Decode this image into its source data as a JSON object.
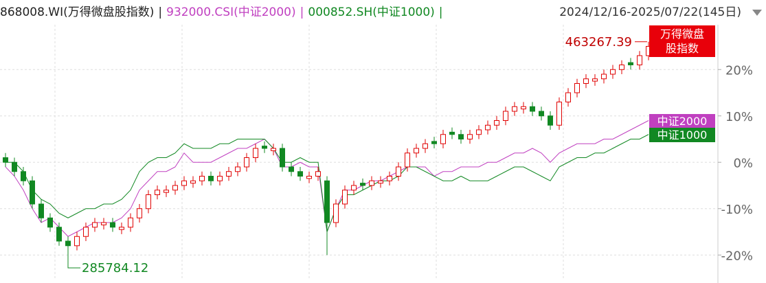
{
  "chart_data": {
    "type": "candlestick",
    "header": [
      {
        "text": "868008.WI(万得微盘股指数)",
        "color": "#222222"
      },
      {
        "text": "|",
        "color": "#222222"
      },
      {
        "text": "932000.CSI(中证2000)",
        "color": "#c040c0"
      },
      {
        "text": "|",
        "color": "#c040c0"
      },
      {
        "text": "000852.SH(中证1000)",
        "color": "#118822"
      },
      {
        "text": "|",
        "color": "#118822"
      }
    ],
    "date_range": "2024/12/16-2025/07/22(145日)",
    "ylim": [
      -25,
      35
    ],
    "yticks": [
      {
        "value": 20,
        "label": "20%"
      },
      {
        "value": 10,
        "label": "10%"
      },
      {
        "value": 0,
        "label": "0%"
      },
      {
        "value": -10,
        "label": "-10%"
      },
      {
        "value": -20,
        "label": "-20%"
      }
    ],
    "grid": true,
    "candles": {
      "name": "万得微盘股指数",
      "up_color": "#e00000",
      "down_color": "#118822",
      "open": [
        1,
        0,
        -2,
        -4,
        -9,
        -12,
        -14,
        -17,
        -18,
        -16,
        -14,
        -13.5,
        -13,
        -14.5,
        -14,
        -12,
        -10,
        -7,
        -6.5,
        -6,
        -5,
        -4.5,
        -4,
        -3,
        -4,
        -3,
        -2,
        -1,
        1,
        3.5,
        2.5,
        3,
        -1,
        -2,
        -3.5,
        -3,
        -4,
        -13,
        -9,
        -6,
        -4.5,
        -5,
        -4.5,
        -4,
        -3,
        -1,
        2,
        3,
        4.5,
        4,
        6.5,
        6,
        5,
        6,
        7,
        8,
        9,
        11,
        11.5,
        12,
        11,
        10,
        8,
        13,
        15,
        17,
        17.5,
        18,
        19,
        20,
        21.5,
        21,
        23
      ],
      "high": [
        2,
        1,
        -1,
        -3,
        -8,
        -11,
        -13,
        -16,
        -15,
        -13,
        -12,
        -12,
        -12,
        -13,
        -11,
        -9,
        -6,
        -5,
        -5,
        -4,
        -3,
        -3,
        -2,
        -2,
        -2,
        -1,
        0,
        2,
        4,
        4.5,
        4,
        4,
        0,
        -1,
        -2,
        -1,
        -3,
        -8,
        -5,
        -4,
        -3.5,
        -3,
        -3,
        -2,
        0,
        3,
        4,
        5,
        5.5,
        7,
        7.5,
        7,
        7,
        8,
        9,
        10,
        12,
        13,
        13,
        13,
        12,
        11,
        14,
        16,
        18,
        19,
        19,
        20,
        21,
        22,
        22.5,
        24,
        26
      ],
      "low": [
        -1,
        -3,
        -5,
        -10,
        -13,
        -15,
        -18,
        -21,
        -19,
        -17,
        -15,
        -14.5,
        -15,
        -15.5,
        -15,
        -13,
        -11,
        -8,
        -7.5,
        -7,
        -6,
        -5.5,
        -5,
        -5,
        -5,
        -4,
        -3,
        -2,
        0,
        2,
        1.5,
        -2,
        -3,
        -4,
        -4.5,
        -4,
        -20,
        -14,
        -10,
        -7,
        -6,
        -6,
        -5.5,
        -5,
        -4,
        -2,
        1,
        2,
        3,
        3,
        5,
        4,
        4,
        5,
        6,
        7,
        8,
        10,
        10.5,
        10,
        9,
        7,
        7,
        12,
        14,
        16,
        16.5,
        17,
        18,
        19,
        20,
        20,
        22
      ],
      "close": [
        0,
        -2,
        -4,
        -9,
        -12,
        -14,
        -17,
        -18,
        -16,
        -14,
        -13,
        -13,
        -14,
        -14,
        -12,
        -10,
        -7,
        -6,
        -6,
        -5,
        -4,
        -4,
        -3,
        -4,
        -3,
        -2,
        -1,
        1,
        3,
        3,
        3,
        -1,
        -2,
        -3,
        -3,
        -2,
        -13,
        -9,
        -6,
        -5,
        -5,
        -4,
        -4,
        -3,
        -1,
        2,
        3,
        4,
        4,
        6,
        6,
        5,
        6,
        7,
        8,
        9,
        11,
        12,
        12,
        11,
        10,
        8,
        13,
        15,
        17,
        18,
        18,
        19,
        20,
        21,
        21,
        23,
        25
      ],
      "max_label": "463267.39",
      "min_label": "285784.12"
    },
    "series": [
      {
        "name": "中证2000",
        "color": "#c040c0",
        "values": [
          -1,
          -3,
          -6,
          -10,
          -13,
          -12,
          -14,
          -16,
          -15,
          -14,
          -13,
          -13,
          -13,
          -12,
          -10,
          -6,
          -4,
          -2,
          -2,
          -1,
          2,
          0,
          0,
          0,
          1,
          2,
          3,
          3,
          4,
          5,
          3,
          -1,
          -1,
          0,
          -1,
          -1,
          -15,
          -10,
          -6,
          -6,
          -5,
          -4,
          -4,
          -3,
          -2,
          -1,
          -1,
          -1,
          -3,
          -2,
          -2,
          -1,
          -1,
          -1,
          0,
          0,
          1,
          2,
          2,
          3,
          2,
          0,
          2,
          3,
          4,
          4,
          4,
          5,
          5,
          6,
          7,
          8,
          9
        ]
      },
      {
        "name": "中证1000",
        "color": "#118822",
        "values": [
          0,
          0,
          -2,
          -6,
          -8,
          -9,
          -11,
          -12,
          -11,
          -10,
          -10,
          -9,
          -9,
          -8,
          -6,
          -2,
          0,
          1,
          1,
          2,
          4,
          3,
          3,
          3,
          4,
          4,
          5,
          5,
          5,
          5,
          3,
          0,
          0,
          1,
          0,
          0,
          -15,
          -10,
          -7,
          -7,
          -6,
          -5,
          -4,
          -4,
          -3,
          -1,
          -1,
          -2,
          -3,
          -4,
          -4,
          -3,
          -4,
          -4,
          -4,
          -3,
          -2,
          -1,
          -1,
          -2,
          -3,
          -4,
          -1,
          0,
          1,
          1,
          2,
          2,
          3,
          4,
          5,
          5,
          6
        ]
      }
    ]
  }
}
